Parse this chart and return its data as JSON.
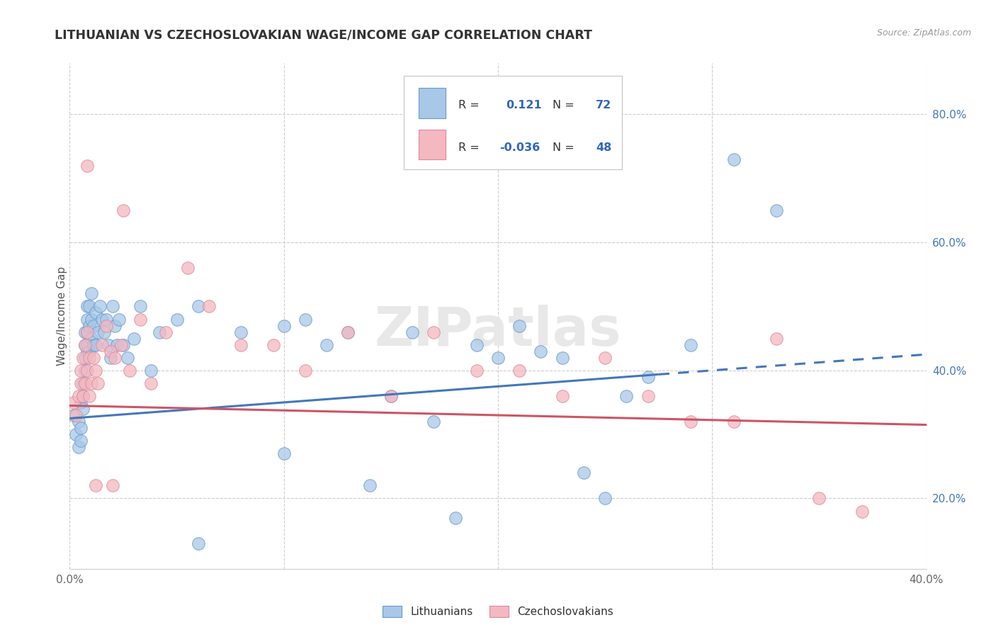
{
  "title": "LITHUANIAN VS CZECHOSLOVAKIAN WAGE/INCOME GAP CORRELATION CHART",
  "source": "Source: ZipAtlas.com",
  "ylabel": "Wage/Income Gap",
  "xlim": [
    0.0,
    0.4
  ],
  "ylim": [
    0.09,
    0.88
  ],
  "xtick_positions": [
    0.0,
    0.1,
    0.2,
    0.3,
    0.4
  ],
  "xticklabels": [
    "0.0%",
    "",
    "",
    "",
    "40.0%"
  ],
  "yticks_right": [
    0.2,
    0.4,
    0.6,
    0.8
  ],
  "ytick_labels_right": [
    "20.0%",
    "40.0%",
    "60.0%",
    "80.0%"
  ],
  "R_blue": 0.121,
  "N_blue": 72,
  "R_pink": -0.036,
  "N_pink": 48,
  "blue_color": "#a8c8e8",
  "pink_color": "#f4b8c0",
  "blue_edge_color": "#6699cc",
  "pink_edge_color": "#dd8899",
  "blue_line_color": "#4477bb",
  "pink_line_color": "#cc5566",
  "watermark": "ZIPatlas",
  "legend_label_blue": "Lithuanians",
  "legend_label_pink": "Czechoslovakians",
  "blue_x": [
    0.002,
    0.003,
    0.004,
    0.004,
    0.005,
    0.005,
    0.005,
    0.006,
    0.006,
    0.006,
    0.007,
    0.007,
    0.007,
    0.007,
    0.008,
    0.008,
    0.008,
    0.008,
    0.008,
    0.009,
    0.009,
    0.009,
    0.01,
    0.01,
    0.01,
    0.011,
    0.011,
    0.012,
    0.012,
    0.013,
    0.014,
    0.015,
    0.016,
    0.017,
    0.018,
    0.019,
    0.02,
    0.021,
    0.022,
    0.023,
    0.025,
    0.027,
    0.03,
    0.033,
    0.038,
    0.042,
    0.05,
    0.06,
    0.08,
    0.1,
    0.11,
    0.12,
    0.13,
    0.15,
    0.16,
    0.17,
    0.19,
    0.2,
    0.21,
    0.22,
    0.23,
    0.24,
    0.26,
    0.29,
    0.31,
    0.33,
    0.25,
    0.18,
    0.14,
    0.27,
    0.1,
    0.06
  ],
  "blue_y": [
    0.33,
    0.3,
    0.32,
    0.28,
    0.35,
    0.31,
    0.29,
    0.36,
    0.34,
    0.38,
    0.44,
    0.42,
    0.4,
    0.46,
    0.48,
    0.46,
    0.43,
    0.5,
    0.44,
    0.47,
    0.5,
    0.43,
    0.45,
    0.48,
    0.52,
    0.44,
    0.47,
    0.49,
    0.44,
    0.46,
    0.5,
    0.48,
    0.46,
    0.48,
    0.44,
    0.42,
    0.5,
    0.47,
    0.44,
    0.48,
    0.44,
    0.42,
    0.45,
    0.5,
    0.4,
    0.46,
    0.48,
    0.5,
    0.46,
    0.47,
    0.48,
    0.44,
    0.46,
    0.36,
    0.46,
    0.32,
    0.44,
    0.42,
    0.47,
    0.43,
    0.42,
    0.24,
    0.36,
    0.44,
    0.73,
    0.65,
    0.2,
    0.17,
    0.22,
    0.39,
    0.27,
    0.13
  ],
  "pink_x": [
    0.002,
    0.003,
    0.004,
    0.005,
    0.005,
    0.006,
    0.006,
    0.007,
    0.007,
    0.008,
    0.008,
    0.009,
    0.009,
    0.01,
    0.011,
    0.012,
    0.013,
    0.015,
    0.017,
    0.019,
    0.021,
    0.024,
    0.028,
    0.033,
    0.038,
    0.045,
    0.055,
    0.065,
    0.08,
    0.095,
    0.11,
    0.13,
    0.15,
    0.17,
    0.19,
    0.21,
    0.23,
    0.25,
    0.27,
    0.29,
    0.31,
    0.33,
    0.35,
    0.37,
    0.012,
    0.02,
    0.025,
    0.008
  ],
  "pink_y": [
    0.35,
    0.33,
    0.36,
    0.38,
    0.4,
    0.42,
    0.36,
    0.44,
    0.38,
    0.46,
    0.4,
    0.42,
    0.36,
    0.38,
    0.42,
    0.4,
    0.38,
    0.44,
    0.47,
    0.43,
    0.42,
    0.44,
    0.4,
    0.48,
    0.38,
    0.46,
    0.56,
    0.5,
    0.44,
    0.44,
    0.4,
    0.46,
    0.36,
    0.46,
    0.4,
    0.4,
    0.36,
    0.42,
    0.36,
    0.32,
    0.32,
    0.45,
    0.2,
    0.18,
    0.22,
    0.22,
    0.65,
    0.72
  ]
}
